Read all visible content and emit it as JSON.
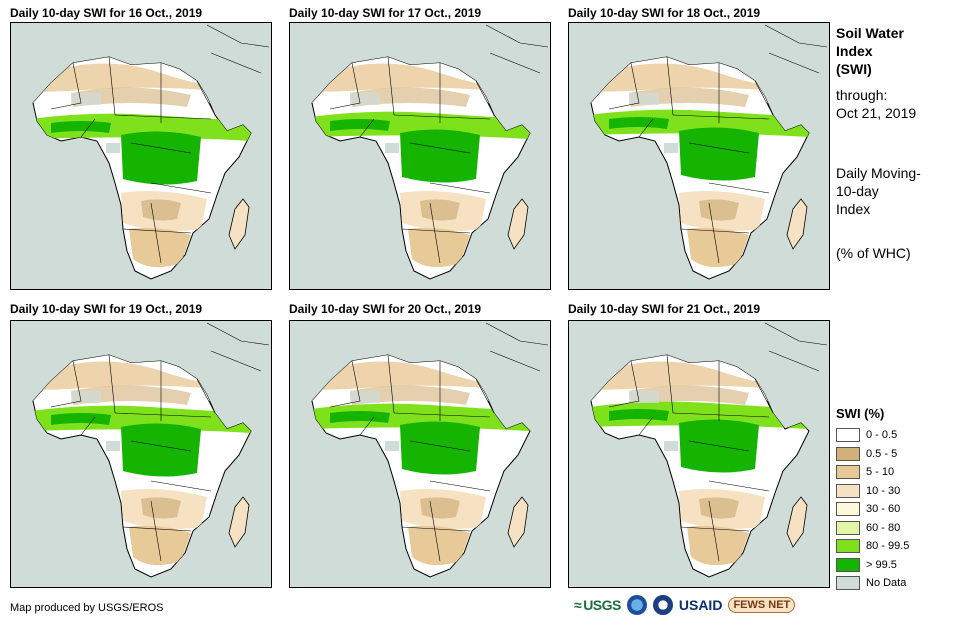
{
  "panels": [
    {
      "title": "Daily 10-day  SWI for 16 Oct., 2019"
    },
    {
      "title": "Daily 10-day  SWI for 17 Oct., 2019"
    },
    {
      "title": "Daily 10-day  SWI for 18 Oct., 2019"
    },
    {
      "title": "Daily 10-day  SWI for 19 Oct., 2019"
    },
    {
      "title": "Daily 10-day  SWI for 20 Oct., 2019"
    },
    {
      "title": "Daily 10-day  SWI for 21 Oct., 2019"
    }
  ],
  "side": {
    "title_line1": "Soil Water",
    "title_line2": "Index",
    "title_line3": "(SWI)",
    "through_label": "through:",
    "through_date": "Oct 21, 2019",
    "desc_line1": "Daily Moving-",
    "desc_line2": "10-day",
    "desc_line3": "Index",
    "unit": "(% of WHC)"
  },
  "legend": {
    "title": "SWI (%)",
    "items": [
      {
        "label": "0 - 0.5",
        "color": "#ffffff"
      },
      {
        "label": "0.5 - 5",
        "color": "#d2b07a"
      },
      {
        "label": "5 - 10",
        "color": "#e8c998"
      },
      {
        "label": "10 - 30",
        "color": "#f6e2c2"
      },
      {
        "label": "30 - 60",
        "color": "#fdf9d8"
      },
      {
        "label": "60 - 80",
        "color": "#e4f7a4"
      },
      {
        "label": "80 - 99.5",
        "color": "#7fe01c"
      },
      {
        "label": "> 99.5",
        "color": "#14b400"
      },
      {
        "label": "No Data",
        "color": "#cfdcd8"
      }
    ]
  },
  "credit": "Map produced by USGS/EROS",
  "logos": {
    "usgs": "USGS",
    "usaid": "USAID",
    "fews": "FEWS NET"
  }
}
